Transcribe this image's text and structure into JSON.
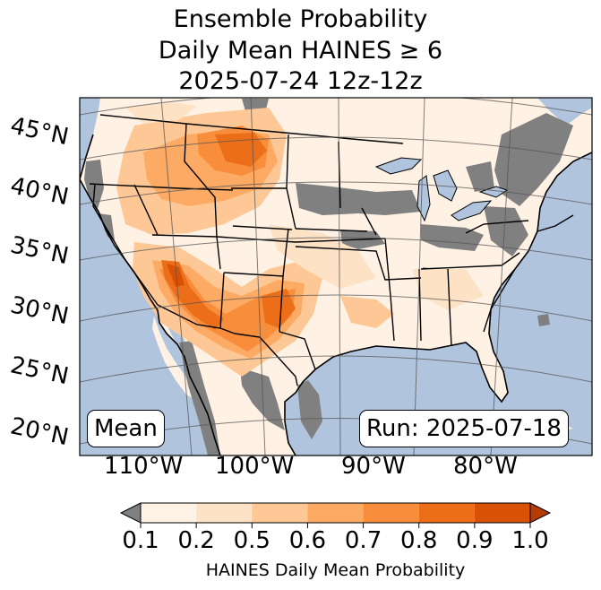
{
  "title": {
    "line1": "Ensemble Probability",
    "line2": "Daily Mean HAINES ≥ 6",
    "line3": "2025-07-24 12z-12z"
  },
  "map": {
    "ocean_color": "#b0c4de",
    "land_color": "#fff1e3",
    "missing_color": "#808080",
    "latitude_labels": [
      "45°N",
      "40°N",
      "35°N",
      "30°N",
      "25°N",
      "20°N"
    ],
    "longitude_labels": [
      "110°W",
      "100°W",
      "90°W",
      "80°W"
    ]
  },
  "boxes": {
    "left": "Mean",
    "right": "Run: 2025-07-18"
  },
  "colorbar": {
    "ticks": [
      "0.1",
      "0.2",
      "0.5",
      "0.6",
      "0.7",
      "0.8",
      "0.9",
      "1.0"
    ],
    "colors": [
      "#fff3e6",
      "#fee2c5",
      "#fdc895",
      "#fdaa65",
      "#f88d3c",
      "#ec6e19",
      "#d95105"
    ],
    "under_color": "#808080",
    "over_color": "#b43c03",
    "label": "HAINES Daily Mean Probability"
  }
}
